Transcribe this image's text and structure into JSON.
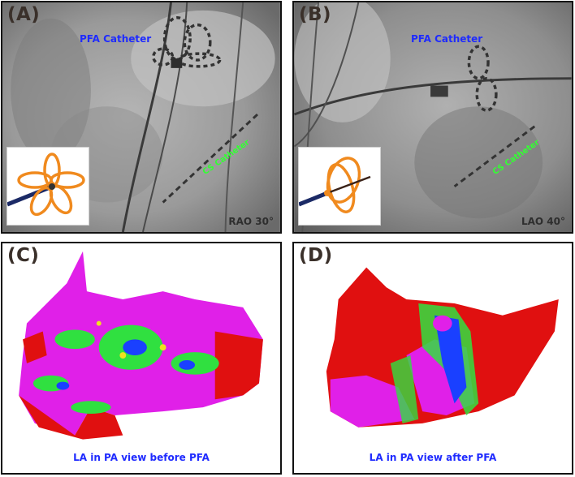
{
  "panels": {
    "a": {
      "tag": "(A)",
      "catheter_label": "PFA Catheter",
      "cs_label": "CS Catheter",
      "view_label": "RAO 30°"
    },
    "b": {
      "tag": "(B)",
      "catheter_label": "PFA Catheter",
      "cs_label": "CS Catheter",
      "view_label": "LAO 40°"
    },
    "c": {
      "tag": "(C)",
      "caption": "LA in PA view before PFA"
    },
    "d": {
      "tag": "(D)",
      "caption": "LA in PA view after PFA"
    }
  },
  "colors": {
    "label_blue": "#1f2bff",
    "cs_green": "#33ff33",
    "map_magenta": "#e020e8",
    "map_red": "#e01010",
    "map_green": "#30e040",
    "map_blue": "#1a40ff",
    "catheter_orange": "#f08a1e"
  }
}
